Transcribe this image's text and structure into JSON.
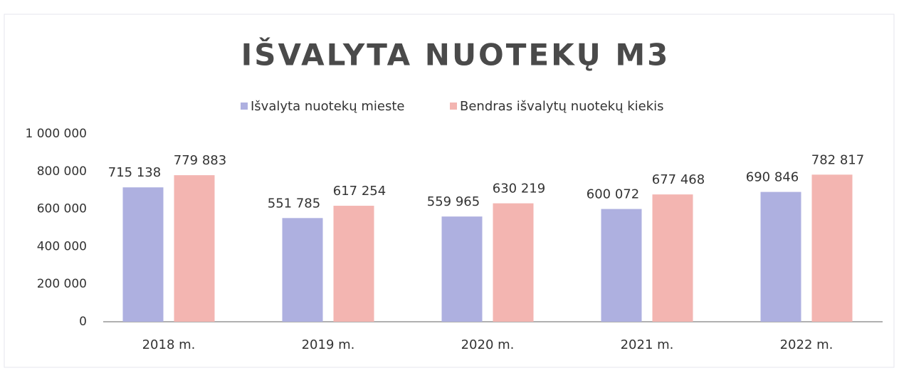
{
  "chart_data": {
    "type": "bar",
    "title": "IŠVALYTA NUOTEKŲ M3",
    "categories": [
      "2018 m.",
      "2019 m.",
      "2020 m.",
      "2021 m.",
      "2022 m."
    ],
    "series": [
      {
        "name": "Išvalyta nuotekų  mieste",
        "color": "#aeb0e0",
        "values": [
          715138,
          551785,
          559965,
          600072,
          690846
        ],
        "value_labels": [
          "715 138",
          "551 785",
          "559 965",
          "600 072",
          "690 846"
        ]
      },
      {
        "name": "Bendras išvalytų nuotekų kiekis",
        "color": "#f3b5b1",
        "values": [
          779883,
          617254,
          630219,
          677468,
          782817
        ],
        "value_labels": [
          "779 883",
          "617 254",
          "630 219",
          "677 468",
          "782 817"
        ]
      }
    ],
    "ylim": [
      0,
      1000000
    ],
    "yticks": [
      0,
      {
        "value": 200000,
        "label": "200 000"
      },
      {
        "value": 400000,
        "label": "400 000"
      },
      {
        "value": 600000,
        "label": "600 000"
      },
      {
        "value": 800000,
        "label": "800 000"
      },
      {
        "value": 1000000,
        "label": "1 000 000"
      }
    ],
    "legend": "top"
  }
}
